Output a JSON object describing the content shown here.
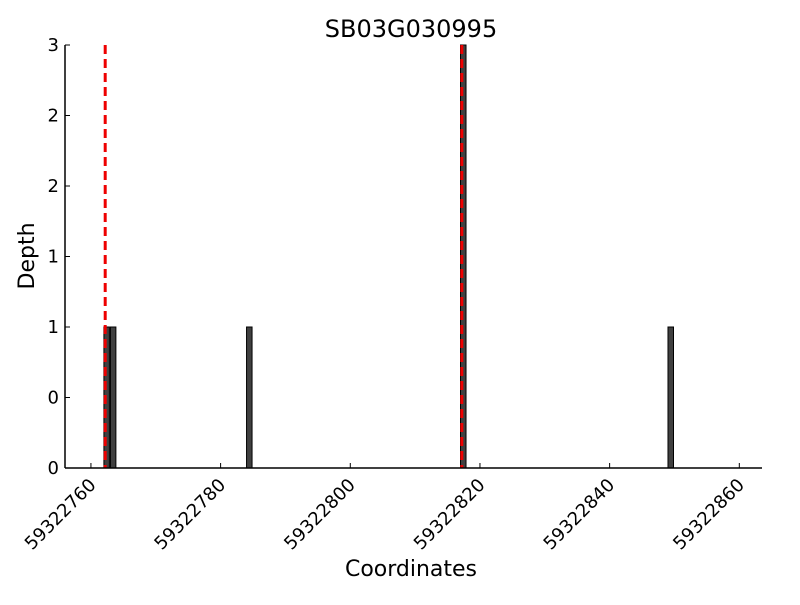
{
  "chart_data": {
    "type": "bar",
    "title": "SB03G030995",
    "xlabel": "Coordinates",
    "ylabel": "Depth",
    "xlim": [
      59322756,
      59322863.5
    ],
    "ylim": [
      0,
      3
    ],
    "x_ticks": [
      59322760,
      59322780,
      59322800,
      59322820,
      59322840,
      59322860
    ],
    "x_tick_labels": [
      "59322760",
      "59322780",
      "59322800",
      "59322820",
      "59322840",
      "59322860"
    ],
    "y_ticks": [
      0,
      0.5,
      1,
      1.5,
      2,
      2.5,
      3
    ],
    "y_tick_labels": [
      "0",
      "0",
      "1",
      "1",
      "2",
      "2",
      "3"
    ],
    "bars": [
      {
        "x": 59322762,
        "value": 1
      },
      {
        "x": 59322763,
        "value": 1
      },
      {
        "x": 59322784,
        "value": 1
      },
      {
        "x": 59322817,
        "value": 3
      },
      {
        "x": 59322849,
        "value": 1
      }
    ],
    "bar_color": "#404040",
    "reference_lines": [
      {
        "x": 59322762.2,
        "color": "#ee0000",
        "style": "dashed"
      },
      {
        "x": 59322817.2,
        "color": "#ee0000",
        "style": "dashed"
      }
    ],
    "grid": false
  }
}
